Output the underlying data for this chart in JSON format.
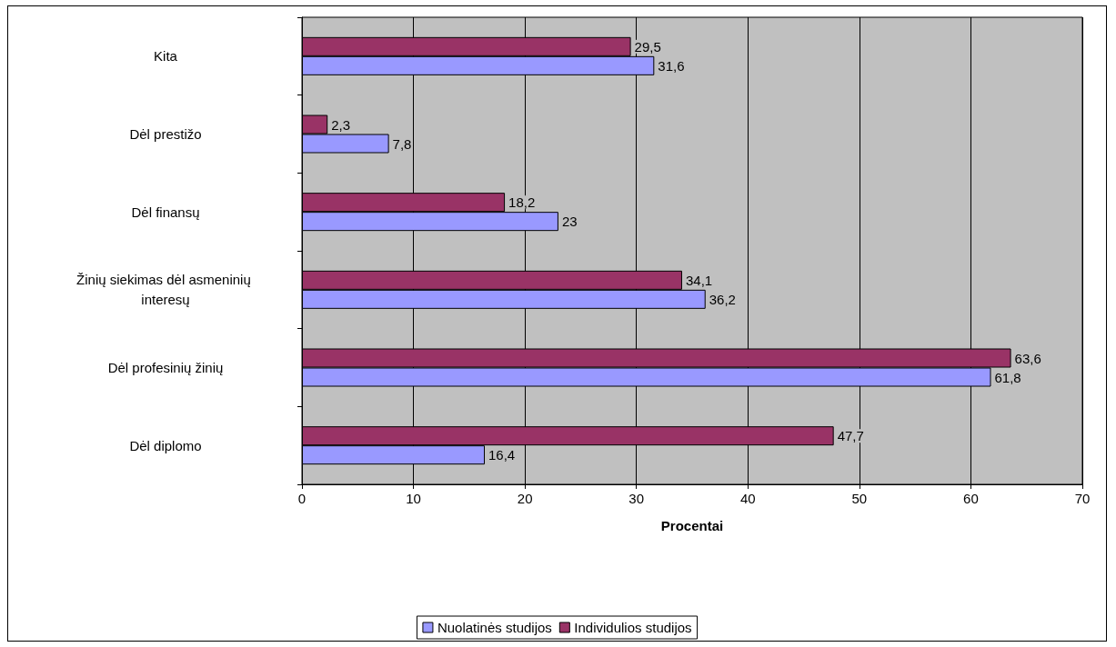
{
  "chart_data": {
    "type": "bar",
    "orientation": "horizontal",
    "xlabel": "Procentai",
    "categories": [
      "Kita",
      "Dėl prestižo",
      "Dėl finansų",
      "Žinių siekimas dėl asmeninių interesų",
      "Dėl profesinių žinių",
      "Dėl diplomo"
    ],
    "series": [
      {
        "name": "Nuolatinės studijos",
        "color": "#9999ff",
        "values": [
          31.6,
          7.8,
          23,
          36.2,
          61.8,
          16.4
        ],
        "value_labels": [
          "31,6",
          "7,8",
          "23",
          "36,2",
          "61,8",
          "16,4"
        ]
      },
      {
        "name": "Individulios studijos",
        "color": "#993366",
        "values": [
          29.5,
          2.3,
          18.2,
          34.1,
          63.6,
          47.7
        ],
        "value_labels": [
          "29,5",
          "2,3",
          "18,2",
          "34,1",
          "63,6",
          "47,7"
        ]
      }
    ],
    "xlim": [
      0,
      70
    ],
    "xticks": [
      0,
      10,
      20,
      30,
      40,
      50,
      60,
      70
    ],
    "grid": "x",
    "legend": "bottom"
  }
}
